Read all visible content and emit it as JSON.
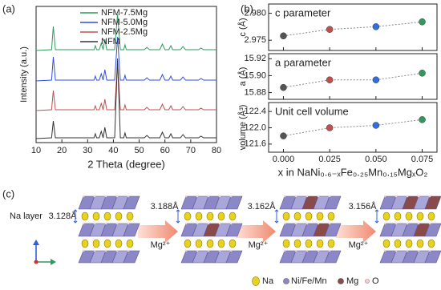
{
  "chart_data": [
    {
      "type": "line",
      "panel_label": "(a)",
      "xlabel": "2 Theta (degree)",
      "ylabel": "Intensity (a.u.)",
      "x": [
        10,
        16,
        16.7,
        17.5,
        25,
        32.5,
        33,
        33.5,
        34.5,
        35.3,
        36,
        36.7,
        37.4,
        40.5,
        41.6,
        42.7,
        44,
        44.5,
        45,
        52,
        53,
        54,
        58,
        59,
        60,
        61.5,
        62.3,
        63,
        66,
        67,
        68,
        73,
        74,
        75,
        80
      ],
      "series": [
        {
          "name": "NFM-7.5Mg",
          "color": "#2e9a5c",
          "values": [
            115,
            116,
            145,
            116,
            116,
            116,
            121,
            116,
            116,
            124,
            116,
            129,
            116,
            116,
            160,
            116,
            116,
            122,
            116,
            116,
            119,
            116,
            116,
            123,
            116,
            116,
            121,
            116,
            116,
            120,
            116,
            116,
            118,
            116,
            116
          ]
        },
        {
          "name": "NFM-5.0Mg",
          "color": "#2f4fe0",
          "values": [
            77,
            78,
            107,
            78,
            78,
            78,
            83,
            78,
            78,
            86,
            78,
            91,
            78,
            78,
            132,
            78,
            78,
            84,
            78,
            78,
            81,
            78,
            78,
            85,
            78,
            78,
            83,
            78,
            78,
            82,
            78,
            78,
            80,
            78,
            78
          ]
        },
        {
          "name": "NFM-2.5Mg",
          "color": "#c0504d",
          "values": [
            40,
            41,
            65,
            41,
            41,
            41,
            46,
            41,
            41,
            49,
            41,
            54,
            41,
            41,
            100,
            41,
            41,
            47,
            41,
            41,
            44,
            41,
            41,
            48,
            41,
            41,
            46,
            41,
            41,
            45,
            41,
            41,
            43,
            41,
            41
          ]
        },
        {
          "name": "NFM",
          "color": "#333333",
          "values": [
            5,
            6,
            27,
            6,
            6,
            6,
            11,
            6,
            6,
            14,
            6,
            19,
            6,
            6,
            105,
            6,
            6,
            12,
            6,
            6,
            9,
            6,
            6,
            13,
            6,
            6,
            11,
            6,
            6,
            10,
            6,
            6,
            8,
            6,
            6
          ]
        }
      ],
      "xlim": [
        10,
        80
      ],
      "xticks": [
        10,
        20,
        30,
        40,
        50,
        60,
        70,
        80
      ],
      "ylim": [
        0,
        170
      ],
      "legend": "upper-left"
    },
    {
      "type": "scatter",
      "panel_label": "(b)",
      "xlabel": "x in NaNi₀.₆₋ₓFe₀.₂₅Mn₀.₁₅MgₓO₂",
      "x": [
        0,
        0.025,
        0.05,
        0.075
      ],
      "colors": [
        "#555555",
        "#c0504d",
        "#2f6fe0",
        "#2e9a5c"
      ],
      "xlim": [
        -0.008,
        0.083
      ],
      "xticks": [
        {
          "value": 0,
          "label": "0.000"
        },
        {
          "value": 0.025,
          "label": "0.025"
        },
        {
          "value": 0.05,
          "label": "0.050"
        },
        {
          "value": 0.075,
          "label": "0.075"
        }
      ],
      "panels": [
        {
          "label": "c parameter",
          "ylabel": "c (Å)",
          "values": [
            2.9758,
            2.977,
            2.9775,
            2.9784
          ],
          "ylim": [
            2.9731,
            2.9817
          ],
          "yticks": [
            2.975,
            {
              "value": 2.98,
              "label": "2.980"
            }
          ]
        },
        {
          "label": "a parameter",
          "ylabel": "a (Å)",
          "values": [
            15.886,
            15.895,
            15.895,
            15.903
          ],
          "ylim": [
            15.872,
            15.926
          ],
          "yticks": [
            15.88,
            {
              "value": 15.9,
              "label": "15.90"
            },
            15.92
          ]
        },
        {
          "label": "Unit cell volume",
          "ylabel": "volume (Å³)",
          "values": [
            121.8,
            122.0,
            122.06,
            122.2
          ],
          "ylim": [
            121.4,
            122.62
          ],
          "yticks": [
            121.6,
            {
              "value": 122,
              "label": "122.0"
            },
            122.4
          ]
        }
      ]
    }
  ],
  "diagram": {
    "panel_label": "(c)",
    "layer_label": "Na layer",
    "spacings": [
      "3.128Å",
      "3.188Å",
      "3.162Å",
      "3.156Å"
    ],
    "arrow_labels": [
      "Mg²⁺",
      "Mg²⁺",
      "Mg²⁺"
    ],
    "legend": [
      "Na",
      "Ni/Fe/Mn",
      "Mg",
      "O"
    ]
  }
}
